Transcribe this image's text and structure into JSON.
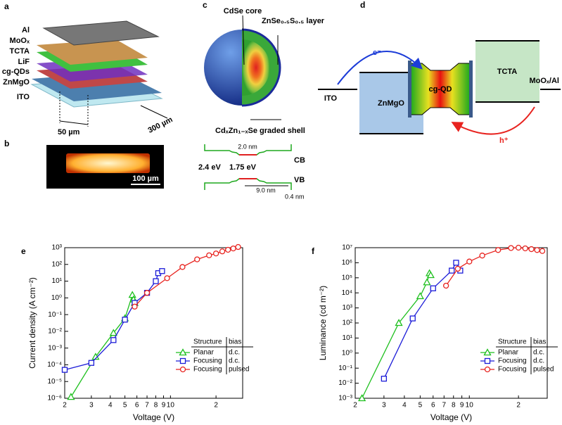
{
  "panels": {
    "a": {
      "label": "a",
      "layers": [
        "Al",
        "MoOₓ",
        "TCTA",
        "LiF",
        "cg-QDs",
        "ZnMgO",
        "ITO"
      ],
      "width": "50 µm",
      "length": "300 µm"
    },
    "b": {
      "label": "b",
      "scale": "100 µm"
    },
    "c": {
      "label": "c",
      "core": "CdSe core",
      "layer": "ZnSe₀.₅S₀.₅ layer",
      "shell": "CdₓZn₁₋ₓSe graded shell",
      "well": "2.0 nm",
      "cb": "CB",
      "gap_outer": "2.4 eV",
      "gap_inner": "1.75 eV",
      "vb": "VB",
      "width": "9.0 nm",
      "edge": "0.4 nm"
    },
    "d": {
      "label": "d",
      "ito": "ITO",
      "znmgo": "ZnMgO",
      "qd": "cg-QD",
      "tcta": "TCTA",
      "anode": "MoOₓ/Al",
      "electron": "e⁻",
      "hole": "h⁺"
    }
  },
  "chart_data": [
    {
      "type": "line",
      "label": "e",
      "xlabel": "Voltage (V)",
      "ylabel": "Current density (A cm⁻²)",
      "xscale": "log",
      "yscale": "log",
      "xlim": [
        2,
        30
      ],
      "ylim": [
        1e-06,
        1000
      ],
      "xticks": [
        2,
        3,
        4,
        5,
        6,
        7,
        8,
        9,
        10,
        {
          "value": 20,
          "label": "2"
        }
      ],
      "yticks": [
        {
          "value": 1e-06,
          "label": "10⁻⁶"
        },
        {
          "value": 1e-05,
          "label": "10⁻⁵"
        },
        {
          "value": 0.0001,
          "label": "10⁻⁴"
        },
        {
          "value": 0.001,
          "label": "10⁻³"
        },
        {
          "value": 0.01,
          "label": "10⁻²"
        },
        {
          "value": 0.1,
          "label": "10⁻¹"
        },
        {
          "value": 1,
          "label": "10⁰"
        },
        {
          "value": 10,
          "label": "10¹"
        },
        {
          "value": 100,
          "label": "10²"
        },
        {
          "value": 1000,
          "label": "10³"
        }
      ],
      "legend": "lower right",
      "legend_header": [
        "Structure",
        "bias"
      ],
      "series": [
        {
          "name": "Planar",
          "bias": "d.c.",
          "color": "#1fc01f",
          "marker": "triangle",
          "x": [
            2.2,
            3.2,
            4.2,
            5.0,
            5.6,
            5.7,
            5.8
          ],
          "values": [
            1.2e-06,
            0.0003,
            0.008,
            0.06,
            1.5,
            0.8,
            0.5
          ]
        },
        {
          "name": "Focusing",
          "bias": "d.c.",
          "color": "#1c1cd8",
          "marker": "square",
          "x": [
            2.0,
            3.0,
            4.2,
            5.0,
            5.8,
            7.0,
            8.0,
            8.3,
            8.8
          ],
          "values": [
            5e-05,
            0.00013,
            0.003,
            0.05,
            0.5,
            2,
            10,
            30,
            40
          ]
        },
        {
          "name": "Focusing",
          "bias": "pulsed",
          "color": "#e8231f",
          "marker": "circle",
          "x": [
            5.8,
            7.0,
            9.5,
            12,
            15,
            18,
            20,
            22,
            24,
            26,
            28
          ],
          "values": [
            0.3,
            2,
            15,
            70,
            200,
            350,
            450,
            600,
            750,
            900,
            1100
          ]
        }
      ]
    },
    {
      "type": "line",
      "label": "f",
      "xlabel": "Voltage (V)",
      "ylabel": "Luminance (cd m⁻²)",
      "xscale": "log",
      "yscale": "log",
      "xlim": [
        2,
        30
      ],
      "ylim": [
        0.001,
        10000000
      ],
      "xticks": [
        2,
        3,
        4,
        5,
        6,
        7,
        8,
        9,
        10,
        {
          "value": 20,
          "label": "2"
        }
      ],
      "yticks": [
        {
          "value": 0.001,
          "label": "10⁻³"
        },
        {
          "value": 0.01,
          "label": "10⁻²"
        },
        {
          "value": 0.1,
          "label": "10⁻¹"
        },
        {
          "value": 1,
          "label": "10⁰"
        },
        {
          "value": 10,
          "label": "10¹"
        },
        {
          "value": 100,
          "label": "10²"
        },
        {
          "value": 1000,
          "label": "10³"
        },
        {
          "value": 10000,
          "label": "10⁴"
        },
        {
          "value": 100000,
          "label": "10⁵"
        },
        {
          "value": 1000000,
          "label": "10⁶"
        },
        {
          "value": 10000000,
          "label": "10⁷"
        }
      ],
      "legend": "lower right",
      "legend_header": [
        "Structure",
        "bias"
      ],
      "series": [
        {
          "name": "Planar",
          "bias": "d.c.",
          "color": "#1fc01f",
          "marker": "triangle",
          "x": [
            2.2,
            3.7,
            5.0,
            5.5,
            5.7,
            5.8
          ],
          "values": [
            0.001,
            100,
            6000,
            50000,
            200000,
            150000
          ]
        },
        {
          "name": "Focusing",
          "bias": "d.c.",
          "color": "#1c1cd8",
          "marker": "square",
          "x": [
            3.0,
            4.5,
            6.0,
            7.8,
            8.3,
            8.8
          ],
          "values": [
            0.02,
            200,
            20000,
            300000,
            1000000,
            300000
          ]
        },
        {
          "name": "Focusing",
          "bias": "pulsed",
          "color": "#e8231f",
          "marker": "circle",
          "x": [
            7.2,
            8.5,
            10,
            12,
            15,
            18,
            20,
            22,
            24,
            26,
            28
          ],
          "values": [
            30000,
            400000,
            1200000,
            3000000,
            7000000,
            9500000,
            10000000,
            9000000,
            8000000,
            7000000,
            6000000
          ]
        }
      ]
    }
  ]
}
